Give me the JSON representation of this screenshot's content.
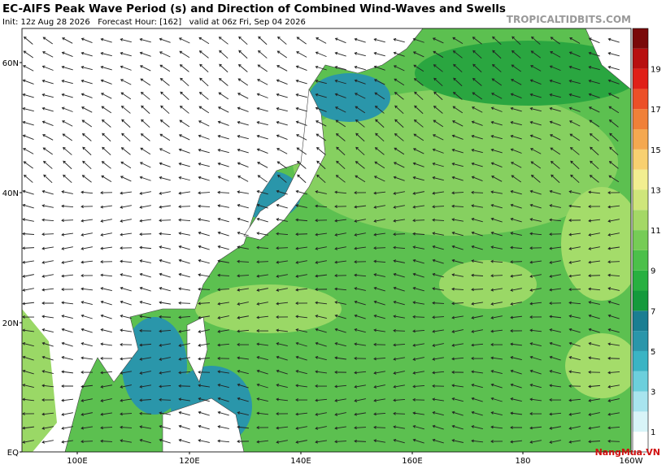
{
  "header": {
    "title": "EC-AIFS Peak Wave Period (s) and Direction of Combined Wind-Waves and Swells",
    "subtitle": "Init: 12z Aug 28 2026   Forecast Hour: [162]   valid at 06z Fri, Sep 04 2026",
    "site": "TROPICALTIDBITS.COM"
  },
  "map": {
    "lat_labels": [
      "60N",
      "40N",
      "20N",
      "EQ"
    ],
    "lon_labels": [
      "100E",
      "120E",
      "140E",
      "160E",
      "180",
      "160W"
    ]
  },
  "colorbar": {
    "labels": [
      1,
      3,
      5,
      7,
      9,
      11,
      13,
      15,
      17,
      19
    ],
    "colors": [
      "#ffffff",
      "#d8f4f8",
      "#a8e4ee",
      "#6ccfdc",
      "#3ab4c4",
      "#2a96aa",
      "#1a7e92",
      "#159a3c",
      "#28b040",
      "#4cc04a",
      "#76cc56",
      "#a4d866",
      "#cfe67a",
      "#f2ee90",
      "#f8d070",
      "#f4a850",
      "#f08038",
      "#ec5028",
      "#e02018",
      "#b81010",
      "#7a0a0a"
    ]
  },
  "watermark": "NangMua.VN"
}
